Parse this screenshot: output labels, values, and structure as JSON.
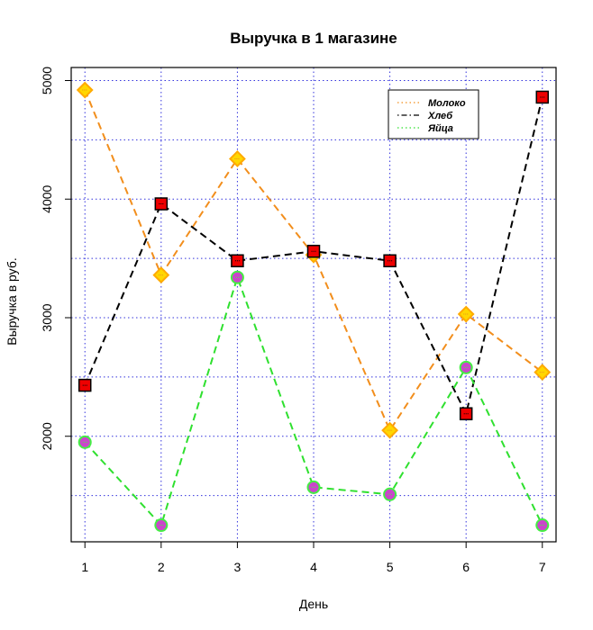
{
  "chart_data": {
    "type": "line",
    "title": "Выручка в 1 магазине",
    "xlabel": "День",
    "ylabel": "Выручка в руб.",
    "x": [
      1,
      2,
      3,
      4,
      5,
      6,
      7
    ],
    "x_tick_labels": [
      "1",
      "2",
      "3",
      "4",
      "5",
      "6",
      "7"
    ],
    "y_tick_labels": [
      "2000",
      "3000",
      "4000",
      "5000"
    ],
    "y_ticks": [
      2000,
      3000,
      4000,
      5000
    ],
    "y_grid": [
      1500,
      2000,
      2500,
      3000,
      3500,
      4000,
      4500,
      5000
    ],
    "xlim": [
      0.82,
      7.18
    ],
    "ylim": [
      1110,
      5110
    ],
    "grid": true,
    "legend_position": "top-right",
    "series": [
      {
        "name": "Молоко",
        "values": [
          4920,
          3360,
          4340,
          3530,
          2050,
          3030,
          2540
        ],
        "color": "#f28e1c",
        "marker": "diamond",
        "marker_fill": "#ffd700",
        "marker_stroke": "#ffaa00",
        "line_style": "dashed",
        "legend_style": "dotted"
      },
      {
        "name": "Хлеб",
        "values": [
          2430,
          3960,
          3480,
          3560,
          3480,
          2190,
          4860
        ],
        "color": "#000000",
        "marker": "square",
        "marker_fill": "#ee0000",
        "marker_stroke": "#000000",
        "line_style": "dashed",
        "legend_style": "dashdot"
      },
      {
        "name": "Яйца",
        "values": [
          1950,
          1250,
          3340,
          1570,
          1510,
          2580,
          1250
        ],
        "color": "#2fe02f",
        "marker": "circle",
        "marker_fill": "#cc44cc",
        "marker_stroke": "#44ee44",
        "line_style": "dashed",
        "legend_style": "dotted"
      }
    ],
    "colors": {
      "grid": "#3333dd",
      "axis": "#000000",
      "background": "#ffffff"
    }
  }
}
